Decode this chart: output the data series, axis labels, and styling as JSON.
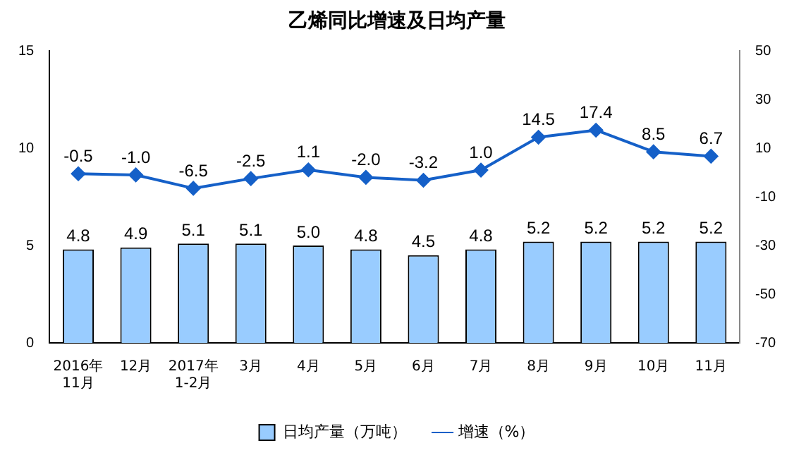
{
  "chart_data": {
    "type": "bar",
    "title": "乙烯同比增速及日均产量",
    "categories": [
      "2016年\n11月",
      "12月",
      "2017年\n1-2月",
      "3月",
      "4月",
      "5月",
      "6月",
      "7月",
      "8月",
      "9月",
      "10月",
      "11月"
    ],
    "series": [
      {
        "name": "日均产量（万吨）",
        "color": "#99ccff",
        "values": [
          4.8,
          4.9,
          5.1,
          5.1,
          5.0,
          4.8,
          4.5,
          4.8,
          5.2,
          5.2,
          5.2,
          5.2
        ],
        "value_labels": [
          "4.8",
          "4.9",
          "5.1",
          "5.1",
          "5.0",
          "4.8",
          "4.5",
          "4.8",
          "5.2",
          "5.2",
          "5.2",
          "5.2"
        ]
      },
      {
        "name": "增速（%）",
        "type": "line",
        "axis": "y2",
        "color": "#1560c8",
        "marker": "diamond",
        "values": [
          -0.5,
          -1.0,
          -6.5,
          -2.5,
          1.1,
          -2.0,
          -3.2,
          1.0,
          14.5,
          17.4,
          8.5,
          6.7
        ],
        "value_labels": [
          "-0.5",
          "-1.0",
          "-6.5",
          "-2.5",
          "1.1",
          "-2.0",
          "-3.2",
          "1.0",
          "14.5",
          "17.4",
          "8.5",
          "6.7"
        ]
      }
    ],
    "ylim": [
      0,
      15
    ],
    "yticks": [
      0,
      5,
      10,
      15
    ],
    "y2lim": [
      -70,
      50
    ],
    "y2ticks": [
      -70,
      -50,
      -30,
      -10,
      10,
      30,
      50
    ],
    "grid": false,
    "legend": "bottom"
  }
}
